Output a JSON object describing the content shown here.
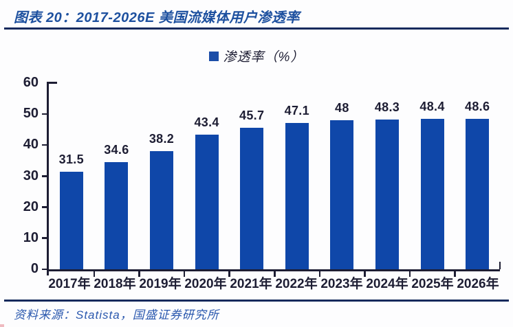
{
  "header": {
    "title": "图表 20：2017-2026E 美国流媒体用户渗透率"
  },
  "legend": {
    "label": "渗透率（%）",
    "swatch_color": "#1b4da8"
  },
  "footer": {
    "source": "资料来源：Statista，国盛证券研究所"
  },
  "colors": {
    "bar": "#0f47a9",
    "title_blue": "#1d509f",
    "rule_navy": "#13295c",
    "axis_ink": "#1d1d33",
    "source_blue": "#2a58ae"
  },
  "chart_data": {
    "type": "bar",
    "title": "2017-2026E 美国流媒体用户渗透率",
    "series_name": "渗透率（%）",
    "categories": [
      "2017年",
      "2018年",
      "2019年",
      "2020年",
      "2021年",
      "2022年",
      "2023年",
      "2024年",
      "2025年",
      "2026年"
    ],
    "values": [
      31.5,
      34.6,
      38.2,
      43.4,
      45.7,
      47.1,
      48,
      48.3,
      48.4,
      48.6
    ],
    "value_labels": [
      "31.5",
      "34.6",
      "38.2",
      "43.4",
      "45.7",
      "47.1",
      "48",
      "48.3",
      "48.4",
      "48.6"
    ],
    "xlabel": "",
    "ylabel": "",
    "ylim": [
      0,
      60
    ],
    "yticks": [
      0,
      10,
      20,
      30,
      40,
      50,
      60
    ],
    "grid": false,
    "legend_position": "top-center",
    "bar_color": "#0f47a9"
  }
}
